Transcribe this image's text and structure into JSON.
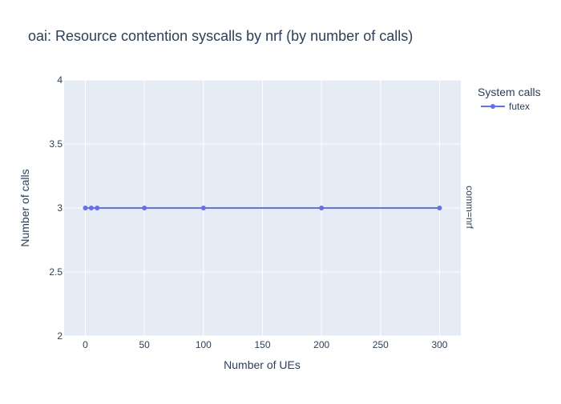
{
  "chart_data": {
    "type": "line",
    "title": "oai: Resource contention syscalls by nrf (by number of calls)",
    "xlabel": "Number of UEs",
    "ylabel": "Number of calls",
    "xlim": [
      -18,
      318
    ],
    "ylim": [
      2,
      4
    ],
    "x_ticks": [
      0,
      50,
      100,
      150,
      200,
      250,
      300
    ],
    "y_ticks": [
      2,
      2.5,
      3,
      3.5,
      4
    ],
    "x_tick_labels": [
      "0",
      "50",
      "100",
      "150",
      "200",
      "250",
      "300"
    ],
    "y_tick_labels": [
      "2",
      "2.5",
      "3",
      "3.5",
      "4"
    ],
    "grid": true,
    "facet_label": "comm=nrf",
    "legend": {
      "title": "System calls",
      "position": "top-right"
    },
    "series": [
      {
        "name": "futex",
        "color": "#636efa",
        "x": [
          0,
          5,
          10,
          50,
          100,
          200,
          300
        ],
        "y": [
          3,
          3,
          3,
          3,
          3,
          3,
          3
        ]
      }
    ],
    "colors": {
      "plot_background": "#e5ecf6",
      "grid": "#ffffff",
      "text": "#2a3f5f"
    }
  }
}
